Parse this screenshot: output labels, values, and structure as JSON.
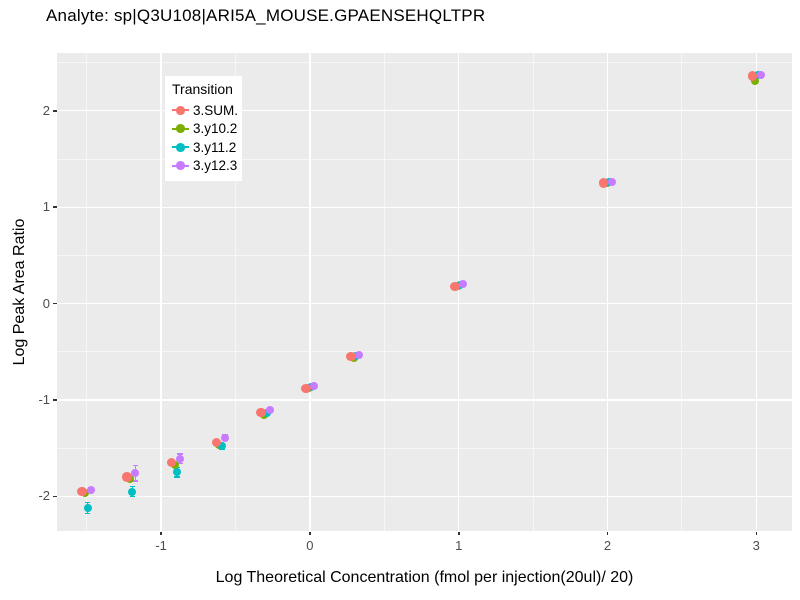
{
  "chart_data": {
    "type": "scatter",
    "title": "Analyte: sp|Q3U108|ARI5A_MOUSE.GPAENSEHQLTPR",
    "xlabel": "Log Theoretical Concentration (fmol per injection(20ul)/ 20)",
    "ylabel": "Log Peak Area Ratio",
    "legend": {
      "title": "Transition",
      "position": "inset-top-left",
      "entries": [
        "3.SUM.",
        "3.y10.2",
        "3.y11.2",
        "3.y12.3"
      ]
    },
    "axes": {
      "xlim": [
        -1.7,
        3.24
      ],
      "ylim": [
        -2.36,
        2.6
      ],
      "x_ticks": [
        -1,
        0,
        1,
        2,
        3
      ],
      "y_ticks": [
        -2,
        -1,
        0,
        1,
        2
      ],
      "x_minor": [
        -1.5,
        -0.5,
        0.5,
        1.5,
        2.5
      ],
      "y_minor": [
        -1.5,
        -0.5,
        0.5,
        1.5,
        2.5
      ],
      "grid": "white-on-gray"
    },
    "colors": {
      "panel_bg": "#EBEBEB",
      "gridline": "#FFFFFF",
      "tick_label": "#4D4D4D",
      "series": [
        "#F8766D",
        "#7CAE00",
        "#00BFC4",
        "#C77CFF"
      ]
    },
    "x": [
      -1.505,
      -1.204,
      -0.903,
      -0.602,
      -0.301,
      0,
      0.301,
      1,
      2,
      3
    ],
    "series": [
      {
        "name": "3.SUM.",
        "color": "#F8766D",
        "y": [
          -1.95,
          -1.8,
          -1.65,
          -1.44,
          -1.13,
          -0.88,
          -0.55,
          0.18,
          1.25,
          2.36
        ],
        "err": [
          0,
          0,
          0,
          0,
          0,
          0,
          0,
          0,
          0,
          0
        ]
      },
      {
        "name": "3.y10.2",
        "color": "#7CAE00",
        "y": [
          -1.97,
          -1.82,
          -1.67,
          -1.47,
          -1.16,
          -0.88,
          -0.56,
          0.18,
          1.25,
          2.31
        ],
        "err": [
          0,
          0,
          0,
          0,
          0,
          0,
          0,
          0,
          0,
          0
        ]
      },
      {
        "name": "3.y11.2",
        "color": "#00BFC4",
        "y": [
          -2.12,
          -1.95,
          -1.75,
          -1.48,
          -1.14,
          -0.87,
          -0.54,
          0.19,
          1.26,
          2.37
        ],
        "err": [
          0.06,
          0.05,
          0.05,
          0.03,
          0,
          0,
          0,
          0,
          0,
          0
        ]
      },
      {
        "name": "3.y12.3",
        "color": "#C77CFF",
        "y": [
          -1.93,
          -1.76,
          -1.61,
          -1.39,
          -1.1,
          -0.86,
          -0.53,
          0.2,
          1.26,
          2.37
        ],
        "err": [
          0.02,
          0.08,
          0.05,
          0.03,
          0,
          0,
          0,
          0,
          0,
          0
        ]
      }
    ]
  }
}
